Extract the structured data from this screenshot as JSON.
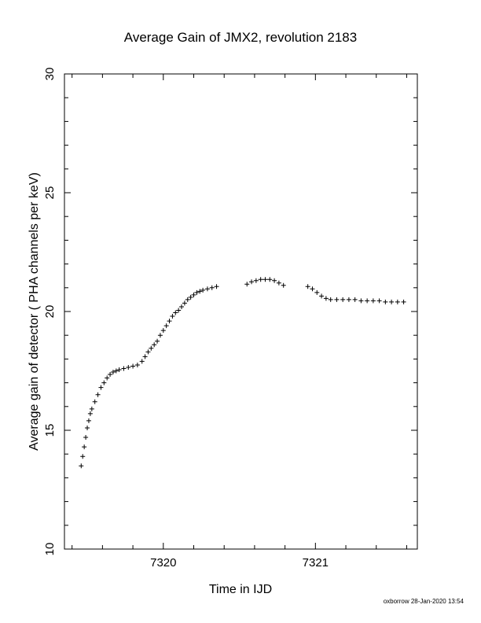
{
  "chart_data": {
    "type": "scatter",
    "title": "Average Gain of JMX2, revolution 2183",
    "xlabel": "Time in IJD",
    "ylabel": "Average gain of detector ( PHA channels per keV)",
    "xlim": [
      7319.35,
      7321.67
    ],
    "ylim": [
      10,
      30
    ],
    "x_ticks": [
      7320,
      7321
    ],
    "y_ticks": [
      10,
      15,
      20,
      25,
      30
    ],
    "marker": "+",
    "grid": false,
    "segments": [
      {
        "x": [
          7319.46,
          7319.47,
          7319.48,
          7319.49,
          7319.5,
          7319.51,
          7319.52,
          7319.53,
          7319.55,
          7319.57,
          7319.59,
          7319.61,
          7319.63,
          7319.65,
          7319.67,
          7319.69,
          7319.71,
          7319.74,
          7319.77,
          7319.8,
          7319.83,
          7319.86,
          7319.88,
          7319.9,
          7319.92,
          7319.94,
          7319.96,
          7319.98,
          7320.0,
          7320.02,
          7320.04,
          7320.06,
          7320.08,
          7320.1,
          7320.12,
          7320.14,
          7320.16,
          7320.18,
          7320.2,
          7320.22,
          7320.24,
          7320.26,
          7320.29,
          7320.32,
          7320.35
        ],
        "y": [
          13.5,
          13.9,
          14.3,
          14.7,
          15.1,
          15.4,
          15.7,
          15.9,
          16.2,
          16.5,
          16.8,
          17.0,
          17.2,
          17.35,
          17.45,
          17.5,
          17.55,
          17.6,
          17.65,
          17.7,
          17.75,
          17.9,
          18.1,
          18.3,
          18.45,
          18.6,
          18.75,
          19.0,
          19.2,
          19.4,
          19.6,
          19.8,
          19.95,
          20.05,
          20.2,
          20.35,
          20.5,
          20.6,
          20.7,
          20.8,
          20.85,
          20.9,
          20.95,
          21.0,
          21.05
        ]
      },
      {
        "x": [
          7320.55,
          7320.58,
          7320.61,
          7320.64,
          7320.67,
          7320.7,
          7320.73,
          7320.76,
          7320.79
        ],
        "y": [
          21.15,
          21.25,
          21.3,
          21.35,
          21.35,
          21.35,
          21.3,
          21.2,
          21.1
        ]
      },
      {
        "x": [
          7320.95,
          7320.98,
          7321.01,
          7321.04,
          7321.07,
          7321.1,
          7321.14,
          7321.18,
          7321.22,
          7321.26,
          7321.3,
          7321.34,
          7321.38,
          7321.42,
          7321.46,
          7321.5,
          7321.54,
          7321.58
        ],
        "y": [
          21.05,
          20.95,
          20.8,
          20.65,
          20.55,
          20.5,
          20.5,
          20.5,
          20.5,
          20.5,
          20.45,
          20.45,
          20.45,
          20.45,
          20.4,
          20.4,
          20.4,
          20.4
        ]
      }
    ]
  },
  "footer": {
    "stamp": "oxborrow 28-Jan-2020 13:54"
  }
}
